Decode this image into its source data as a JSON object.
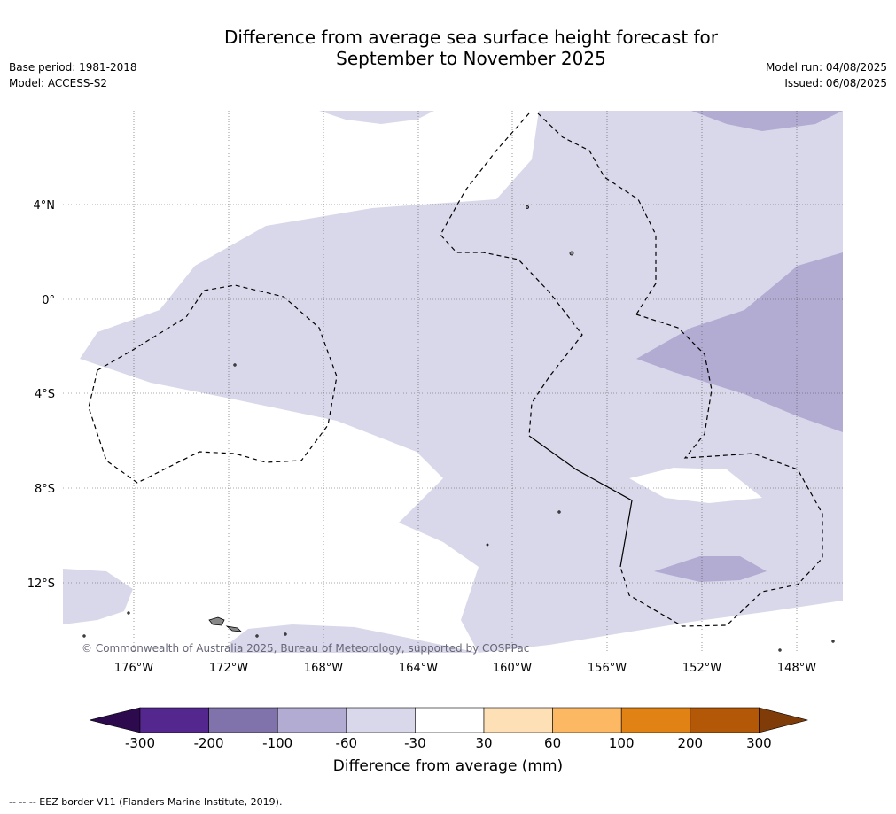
{
  "title_line1": "Difference from average sea surface height forecast for",
  "title_line2": "September to November 2025",
  "base_period": "Base period: 1981-2018",
  "model": "Model: ACCESS-S2",
  "model_run": "Model run: 04/08/2025",
  "issued": "Issued: 06/08/2025",
  "copyright": "© Commonwealth of Australia 2025, Bureau of Meteorology, supported by COSPPac",
  "footer_note": "-- -- -- EEZ border V11 (Flanders Marine Institute, 2019).",
  "lon_labels": [
    "176°W",
    "172°W",
    "168°W",
    "164°W",
    "160°W",
    "156°W",
    "152°W",
    "148°W"
  ],
  "lat_labels": [
    "4°N",
    "0°",
    "4°S",
    "8°S",
    "12°S"
  ],
  "colorbar": {
    "label": "Difference from average (mm)",
    "ticks": [
      "-300",
      "-200",
      "-100",
      "-60",
      "-30",
      "30",
      "60",
      "100",
      "200",
      "300"
    ],
    "colors": {
      "under": "#2d0a4e",
      "-300_-200": "#54278f",
      "-200_-100": "#8073ac",
      "-100_-60": "#b2abd2",
      "-60_-30": "#d8d8ea",
      "-30_30": "#ffffff",
      "30_60": "#fee0b6",
      "60_100": "#fdb863",
      "100_200": "#e08214",
      "200_300": "#b35806",
      "over": "#7f3b08"
    }
  },
  "colors": {
    "land": "#888888",
    "gridline": "#555555",
    "border": "#000000"
  }
}
